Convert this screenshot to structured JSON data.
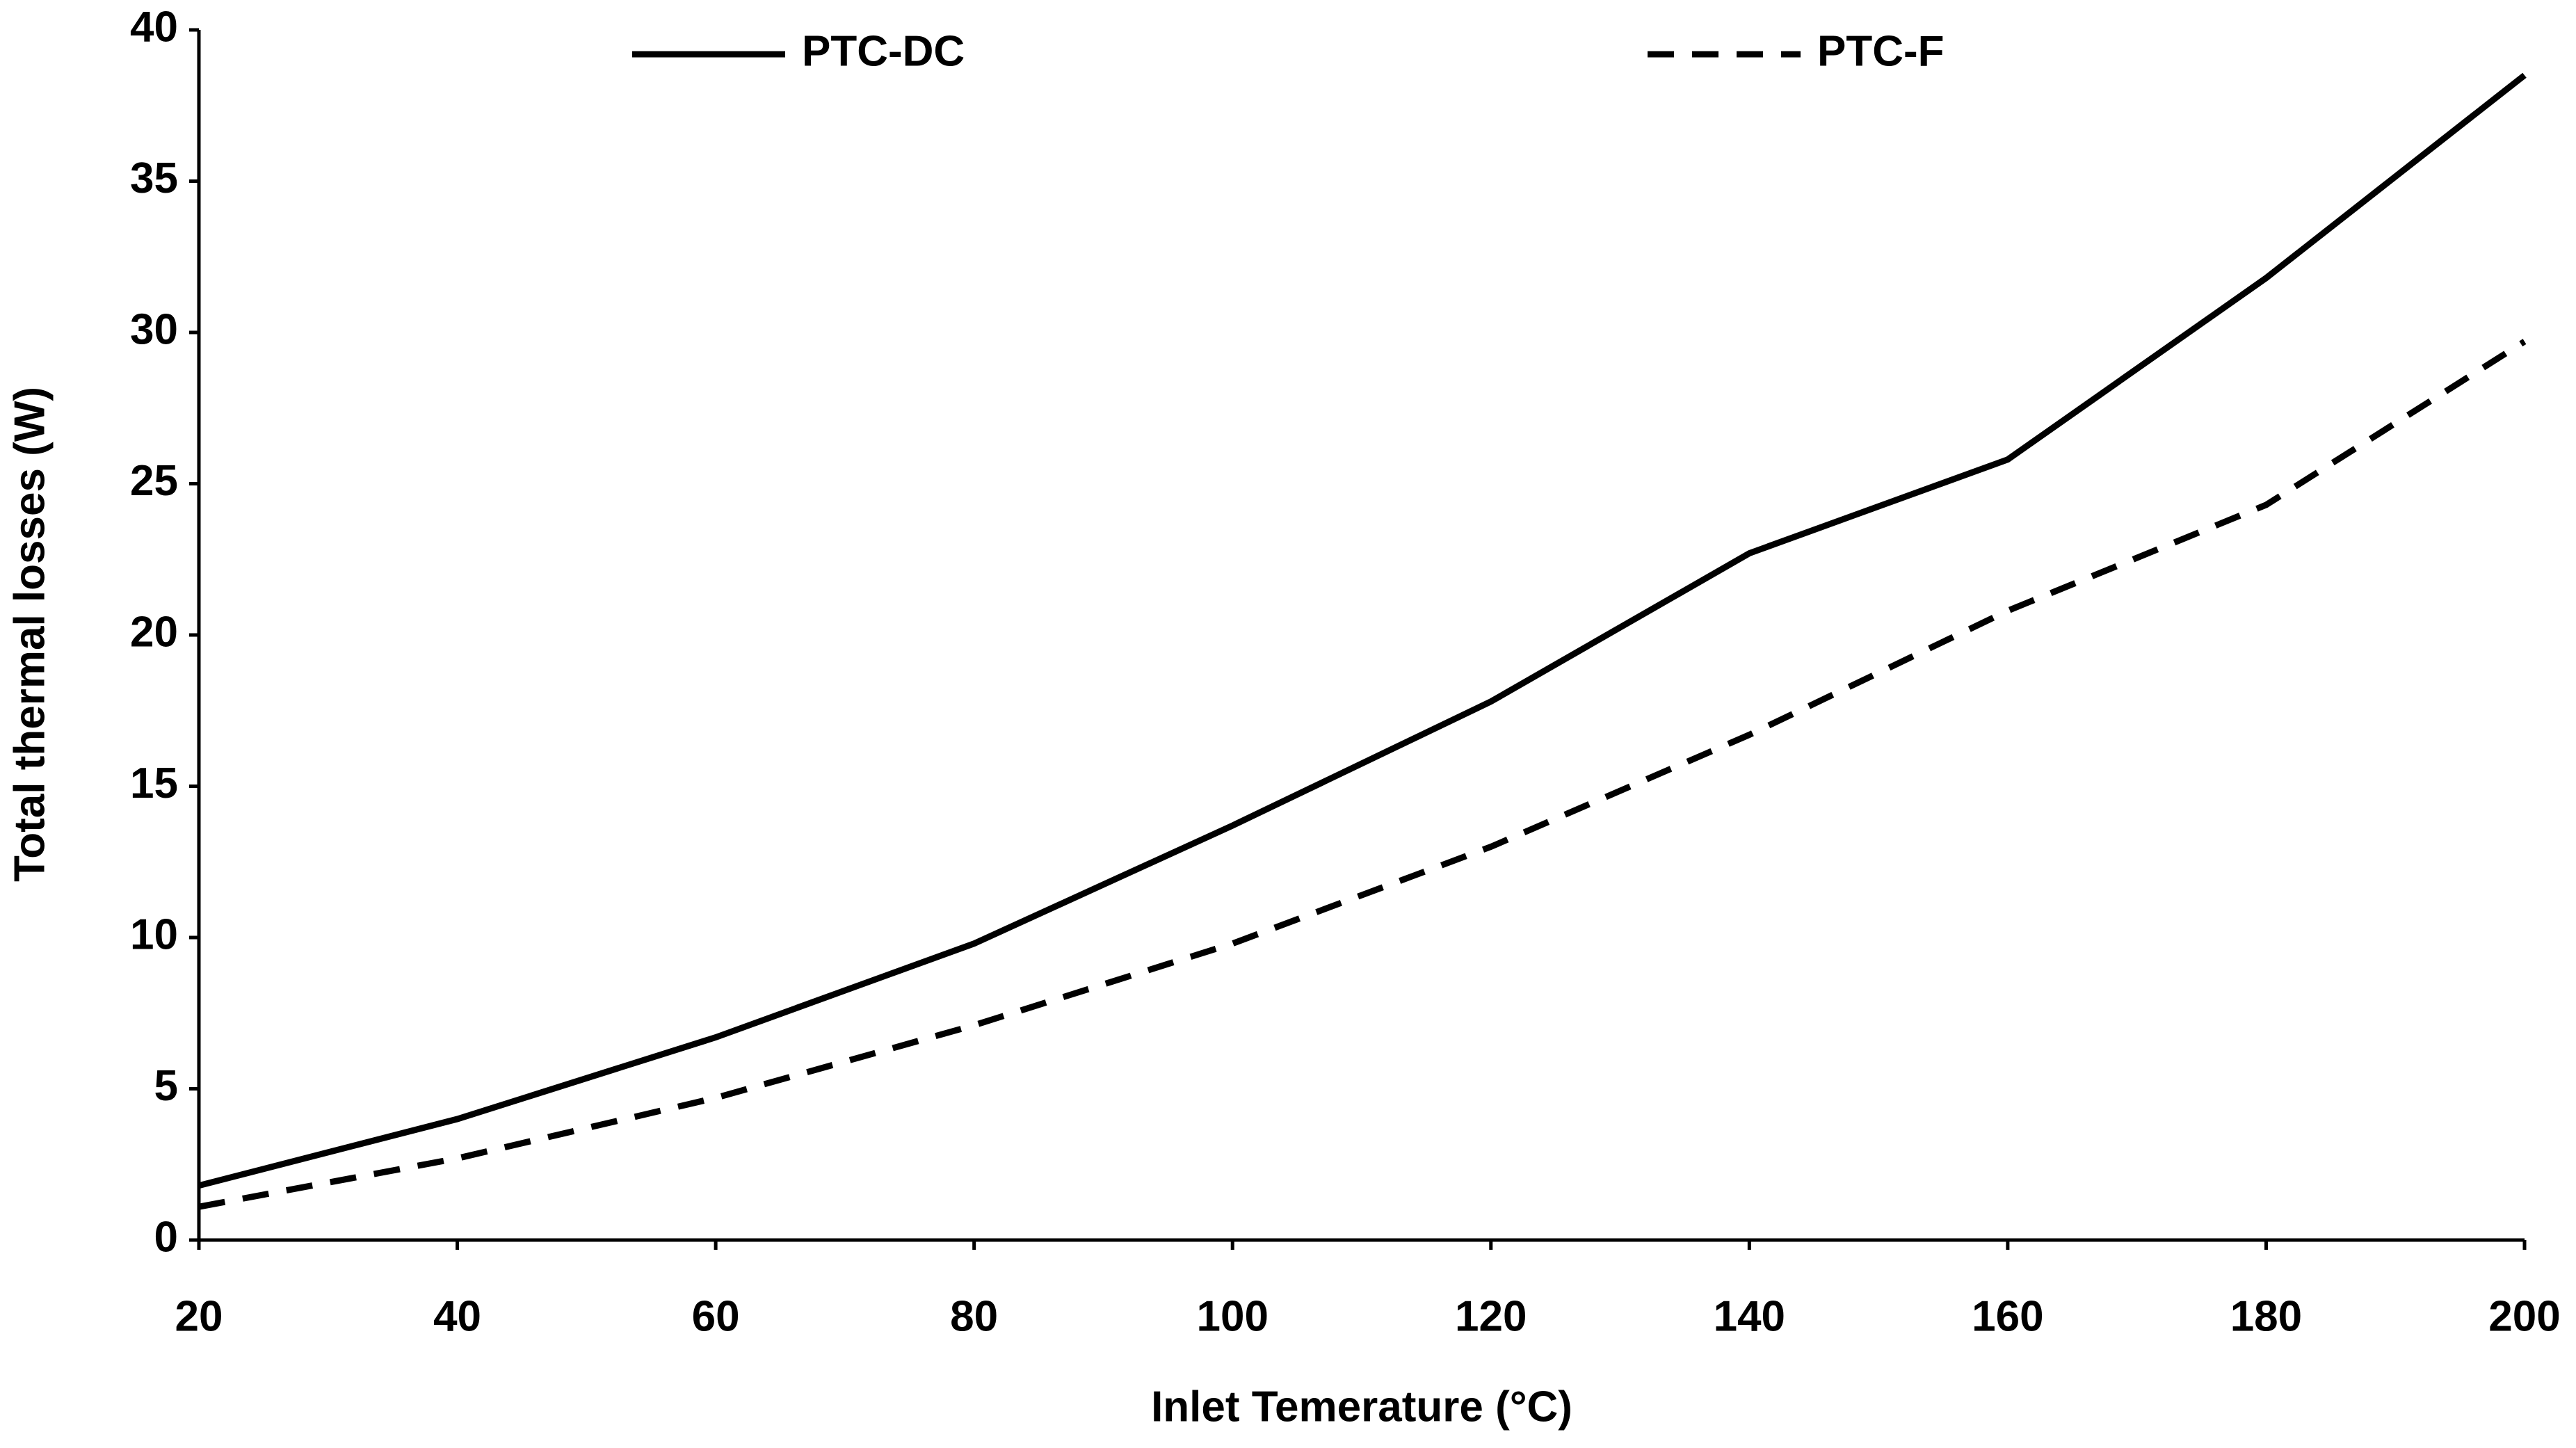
{
  "chart_data": {
    "type": "line",
    "x_label": "Inlet Temerature (°C)",
    "y_label": "Total thermal losses (W)",
    "x": [
      20,
      40,
      60,
      80,
      100,
      120,
      140,
      160,
      180,
      200
    ],
    "series": [
      {
        "name": "PTC-DC",
        "color": "#000000",
        "dash": "solid",
        "values": [
          1.8,
          4.0,
          6.7,
          9.8,
          13.7,
          17.8,
          22.7,
          25.8,
          31.8,
          38.5
        ]
      },
      {
        "name": "PTC-F",
        "color": "#000000",
        "dash": "dashed",
        "values": [
          1.1,
          2.7,
          4.7,
          7.1,
          9.8,
          13.0,
          16.7,
          20.8,
          24.3,
          29.7
        ]
      }
    ],
    "xlim": [
      20,
      200
    ],
    "xticks": [
      20,
      40,
      60,
      80,
      100,
      120,
      140,
      160,
      180,
      200
    ],
    "ylim": [
      0,
      40
    ],
    "yticks": [
      0,
      5,
      10,
      15,
      20,
      25,
      30,
      35,
      40
    ],
    "grid": false,
    "legend": "top"
  }
}
